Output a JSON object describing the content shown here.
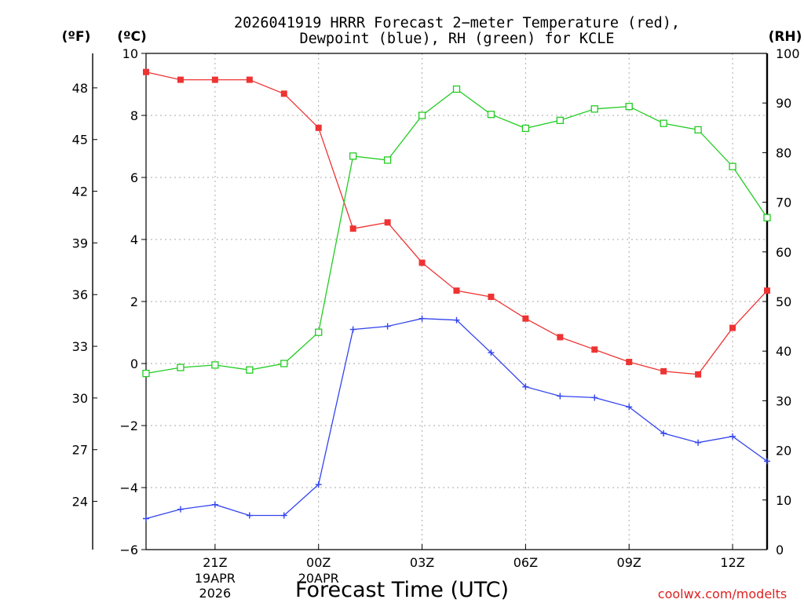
{
  "chart_data": {
    "type": "line",
    "title_line1": "2026041919 HRRR Forecast 2−meter Temperature (red),",
    "title_line2": "Dewpoint (blue), RH (green) for KCLE",
    "xlabel": "Forecast Time (UTC)",
    "watermark": "coolwx.com/modelts",
    "unit_labels": {
      "fahrenheit": "(ºF)",
      "celsius": "(ºC)",
      "rh": "(RH)"
    },
    "x": [
      0,
      1,
      2,
      3,
      4,
      5,
      6,
      7,
      8,
      9,
      10,
      11,
      12,
      13,
      14,
      15,
      16,
      17,
      18
    ],
    "x_range": [
      0,
      18
    ],
    "celsius_axis": {
      "range": [
        -6,
        10
      ],
      "ticks": [
        -6,
        -4,
        -2,
        0,
        2,
        4,
        6,
        8,
        10
      ],
      "labels": [
        "−6",
        "−4",
        "−2",
        "0",
        "2",
        "4",
        "6",
        "8",
        "10"
      ]
    },
    "fahrenheit_axis": {
      "ticks": [
        24,
        27,
        30,
        33,
        36,
        39,
        42,
        45,
        48
      ],
      "labels": [
        "24",
        "27",
        "30",
        "33",
        "36",
        "39",
        "42",
        "45",
        "48"
      ]
    },
    "rh_axis": {
      "range": [
        0,
        100
      ],
      "ticks": [
        0,
        10,
        20,
        30,
        40,
        50,
        60,
        70,
        80,
        90,
        100
      ],
      "labels": [
        "0",
        "10",
        "20",
        "30",
        "40",
        "50",
        "60",
        "70",
        "80",
        "90",
        "100"
      ]
    },
    "x_ticks": [
      {
        "x": 2,
        "label": "21Z",
        "sub1": "19APR",
        "sub2": "2026"
      },
      {
        "x": 5,
        "label": "00Z",
        "sub1": "20APR",
        "sub2": ""
      },
      {
        "x": 8,
        "label": "03Z",
        "sub1": "",
        "sub2": ""
      },
      {
        "x": 11,
        "label": "06Z",
        "sub1": "",
        "sub2": ""
      },
      {
        "x": 14,
        "label": "09Z",
        "sub1": "",
        "sub2": ""
      },
      {
        "x": 17,
        "label": "12Z",
        "sub1": "",
        "sub2": ""
      }
    ],
    "series": [
      {
        "name": "Temperature",
        "color": "#ee3333",
        "axis": "celsius",
        "marker": "filled-square",
        "values": [
          9.4,
          9.15,
          9.15,
          9.15,
          8.7,
          7.6,
          4.35,
          4.55,
          3.25,
          2.35,
          2.15,
          1.45,
          0.85,
          0.45,
          0.05,
          -0.25,
          -0.35,
          1.15,
          2.35
        ]
      },
      {
        "name": "Dewpoint",
        "color": "#3344ee",
        "axis": "celsius",
        "marker": "plus",
        "values": [
          -5.0,
          -4.7,
          -4.55,
          -4.9,
          -4.9,
          -3.9,
          1.1,
          1.2,
          1.45,
          1.4,
          0.35,
          -0.75,
          -1.05,
          -1.1,
          -1.4,
          -2.25,
          -2.55,
          -2.35,
          -3.15
        ]
      },
      {
        "name": "RH",
        "color": "#22cc22",
        "axis": "rh",
        "marker": "open-square",
        "values": [
          35.5,
          36.7,
          37.2,
          36.2,
          37.5,
          43.8,
          79.3,
          78.5,
          87.5,
          92.8,
          87.7,
          84.9,
          86.5,
          88.8,
          89.3,
          85.9,
          84.6,
          77.2,
          66.9
        ]
      }
    ]
  }
}
